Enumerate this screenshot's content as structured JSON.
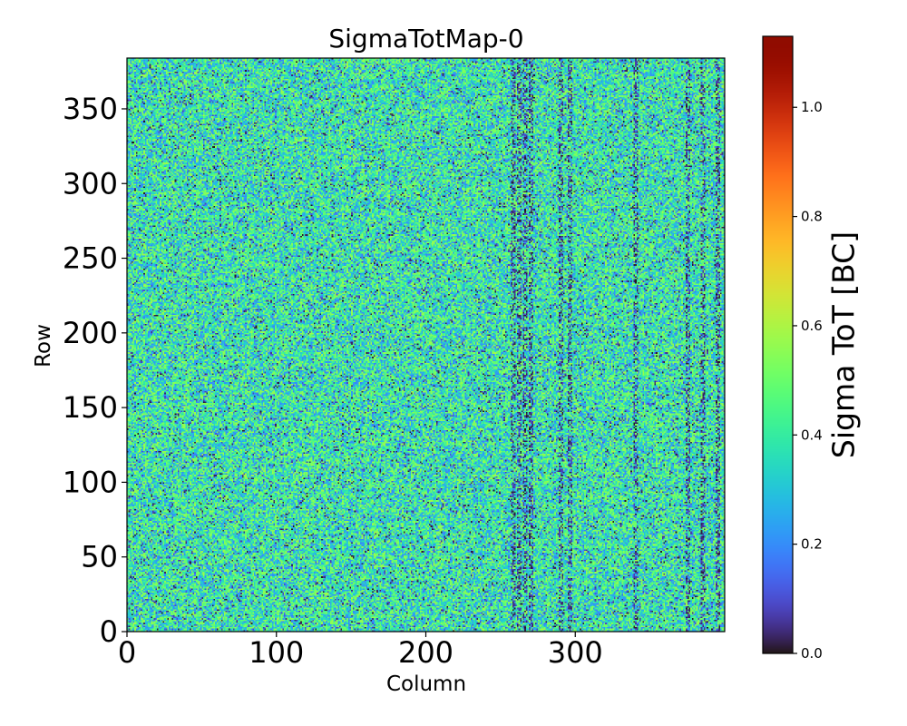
{
  "chart_data": {
    "type": "heatmap",
    "title": "SigmaTotMap-0",
    "xlabel": "Column",
    "ylabel": "Row",
    "xlim": [
      0,
      400
    ],
    "ylim": [
      0,
      384
    ],
    "xticks": [
      0,
      100,
      200,
      300
    ],
    "yticks": [
      0,
      50,
      100,
      150,
      200,
      250,
      300,
      350
    ],
    "colorbar": {
      "label": "Sigma ToT [BC]",
      "colormap": "turbo",
      "range": [
        0.0,
        1.13
      ],
      "ticks": [
        "0.0",
        "0.2",
        "0.4",
        "0.6",
        "0.8",
        "1.0"
      ]
    },
    "value_summary": {
      "typical_min": 0.0,
      "typical_max": 0.6,
      "dominant_value": 0.38
    },
    "colors": {
      "axes": "#000000",
      "background": "#ffffff"
    }
  }
}
